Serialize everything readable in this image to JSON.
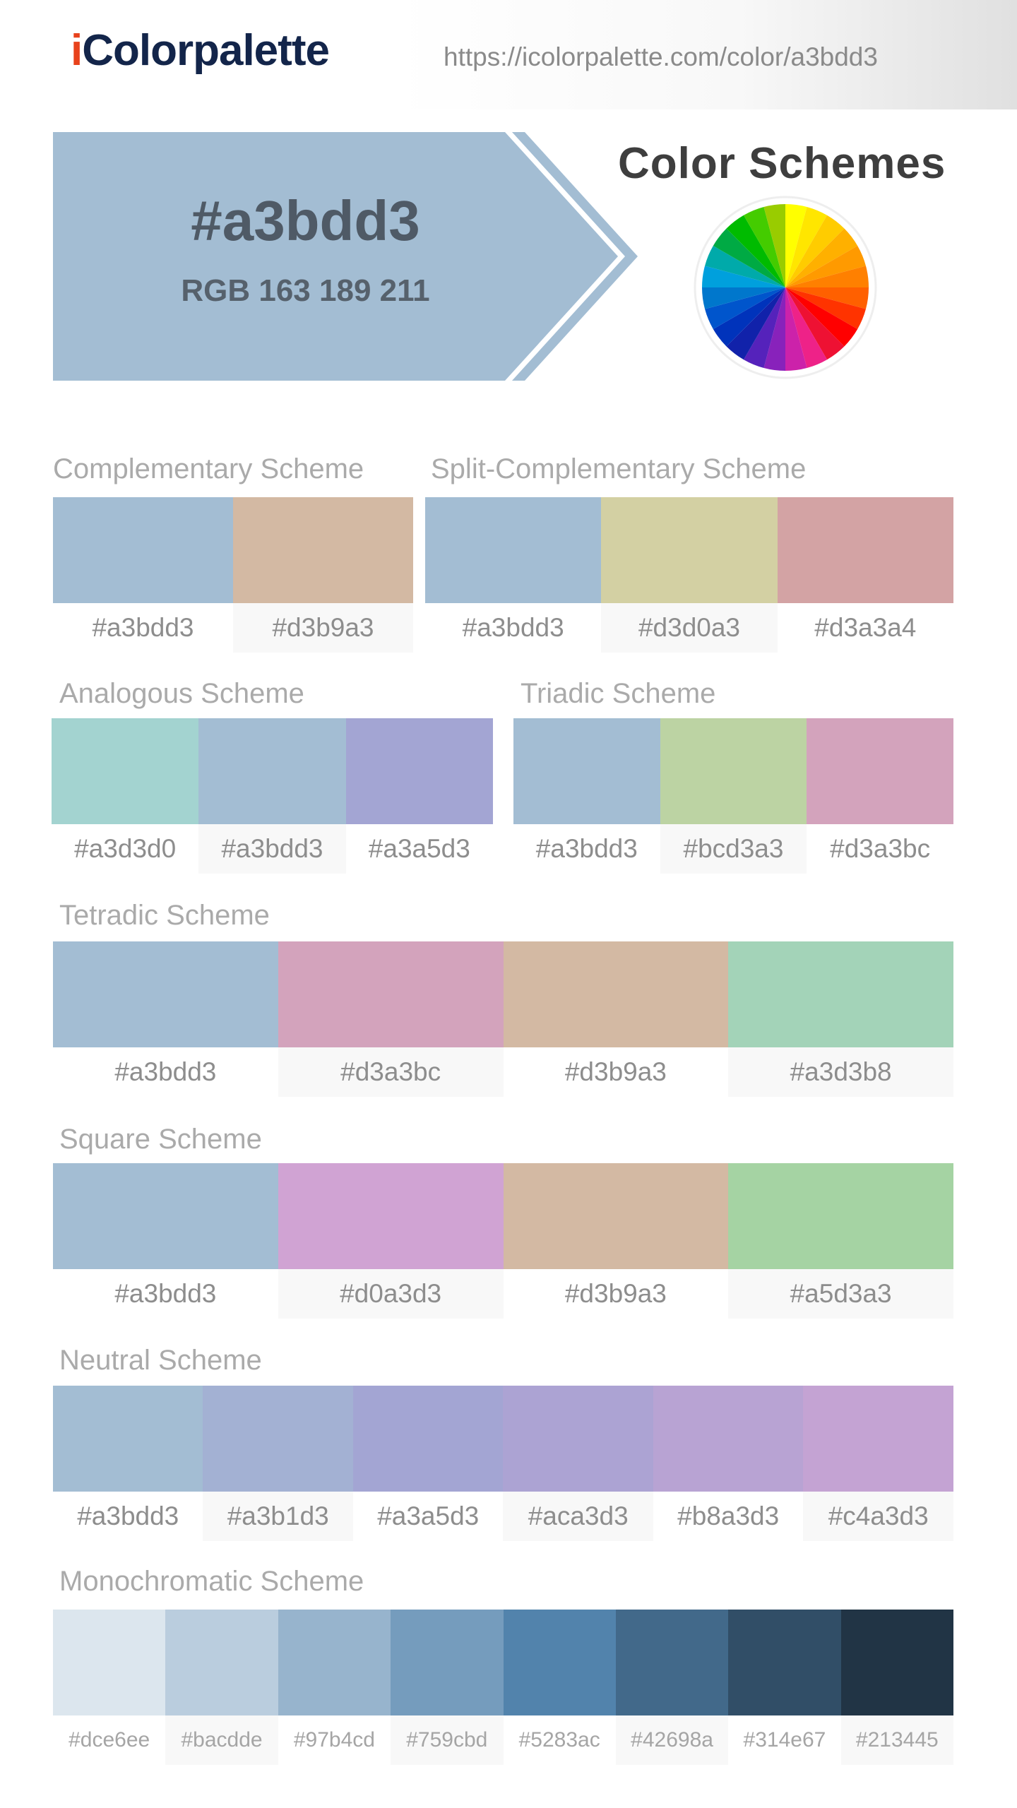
{
  "header": {
    "logo_i": "i",
    "logo_rest": "Colorpalette",
    "url": "https://icolorpalette.com/color/a3bdd3"
  },
  "hero": {
    "hex": "#a3bdd3",
    "rgb": "RGB 163 189 211",
    "color": "#a3bdd3"
  },
  "color_schemes_title": "Color Schemes",
  "wheel_icon": "color-wheel-icon",
  "schemes": {
    "complementary": {
      "title": "Complementary Scheme",
      "swatches": [
        {
          "hex": "#a3bdd3",
          "color": "#a3bdd3"
        },
        {
          "hex": "#d3b9a3",
          "color": "#d3b9a3"
        }
      ]
    },
    "split_complementary": {
      "title": "Split-Complementary Scheme",
      "swatches": [
        {
          "hex": "#a3bdd3",
          "color": "#a3bdd3"
        },
        {
          "hex": "#d3d0a3",
          "color": "#d3d0a3"
        },
        {
          "hex": "#d3a3a4",
          "color": "#d3a3a4"
        }
      ]
    },
    "analogous": {
      "title": "Analogous Scheme",
      "swatches": [
        {
          "hex": "#a3d3d0",
          "color": "#a3d3d0"
        },
        {
          "hex": "#a3bdd3",
          "color": "#a3bdd3"
        },
        {
          "hex": "#a3a5d3",
          "color": "#a3a5d3"
        }
      ]
    },
    "triadic": {
      "title": "Triadic Scheme",
      "swatches": [
        {
          "hex": "#a3bdd3",
          "color": "#a3bdd3"
        },
        {
          "hex": "#bcd3a3",
          "color": "#bcd3a3"
        },
        {
          "hex": "#d3a3bc",
          "color": "#d3a3bc"
        }
      ]
    },
    "tetradic": {
      "title": "Tetradic Scheme",
      "swatches": [
        {
          "hex": "#a3bdd3",
          "color": "#a3bdd3"
        },
        {
          "hex": "#d3a3bc",
          "color": "#d3a3bc"
        },
        {
          "hex": "#d3b9a3",
          "color": "#d3b9a3"
        },
        {
          "hex": "#a3d3b8",
          "color": "#a3d3b8"
        }
      ]
    },
    "square": {
      "title": "Square Scheme",
      "swatches": [
        {
          "hex": "#a3bdd3",
          "color": "#a3bdd3"
        },
        {
          "hex": "#d0a3d3",
          "color": "#d0a3d3"
        },
        {
          "hex": "#d3b9a3",
          "color": "#d3b9a3"
        },
        {
          "hex": "#a5d3a3",
          "color": "#a5d3a3"
        }
      ]
    },
    "neutral": {
      "title": "Neutral Scheme",
      "swatches": [
        {
          "hex": "#a3bdd3",
          "color": "#a3bdd3"
        },
        {
          "hex": "#a3b1d3",
          "color": "#a3b1d3"
        },
        {
          "hex": "#a3a5d3",
          "color": "#a3a5d3"
        },
        {
          "hex": "#aca3d3",
          "color": "#aca3d3"
        },
        {
          "hex": "#b8a3d3",
          "color": "#b8a3d3"
        },
        {
          "hex": "#c4a3d3",
          "color": "#c4a3d3"
        }
      ]
    },
    "monochromatic": {
      "title": "Monochromatic Scheme",
      "swatches": [
        {
          "hex": "#dce6ee",
          "color": "#dce6ee"
        },
        {
          "hex": "#bacdde",
          "color": "#bacdde"
        },
        {
          "hex": "#97b4cd",
          "color": "#97b4cd"
        },
        {
          "hex": "#759cbd",
          "color": "#759cbd"
        },
        {
          "hex": "#5283ac",
          "color": "#5283ac"
        },
        {
          "hex": "#42698a",
          "color": "#42698a"
        },
        {
          "hex": "#314e67",
          "color": "#314e67"
        },
        {
          "hex": "#213445",
          "color": "#213445"
        }
      ]
    }
  }
}
